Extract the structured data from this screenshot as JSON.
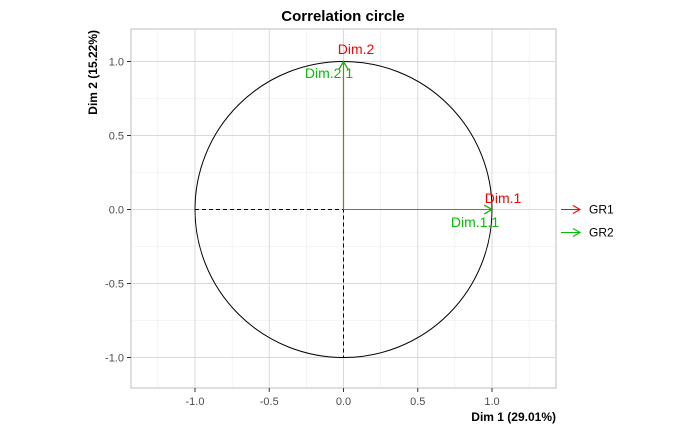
{
  "chart_data": {
    "type": "scatter",
    "title": "Correlation circle",
    "xlabel": "Dim 1 (29.01%)",
    "ylabel": "Dim 2 (15.22%)",
    "xlim": [
      -1.3,
      1.3
    ],
    "ylim": [
      -1.2,
      1.2
    ],
    "xticks": [
      -1.0,
      -0.5,
      0.0,
      0.5,
      1.0
    ],
    "yticks": [
      -1.0,
      -0.5,
      0.0,
      0.5,
      1.0
    ],
    "xtick_labels": [
      "-1.0",
      "-0.5",
      "0.0",
      "0.5",
      "1.0"
    ],
    "ytick_labels": [
      "-1.0",
      "-0.5",
      "0.0",
      "0.5",
      "1.0"
    ],
    "grid": true,
    "unit_circle": true,
    "reference_lines": "dashed lines at x = 0 and y = 0",
    "legend_position": "right",
    "series": [
      {
        "name": "GR1",
        "color": "#ff0000",
        "vectors": [
          {
            "label": "Dim.1",
            "x": 1.0,
            "y": 0.0
          },
          {
            "label": "Dim.2",
            "x": 0.0,
            "y": 1.0
          }
        ]
      },
      {
        "name": "GR2",
        "color": "#00c000",
        "vectors": [
          {
            "label": "Dim.1.1",
            "x": 1.0,
            "y": 0.0
          },
          {
            "label": "Dim.2.1",
            "x": 0.0,
            "y": 1.0
          }
        ]
      }
    ]
  }
}
